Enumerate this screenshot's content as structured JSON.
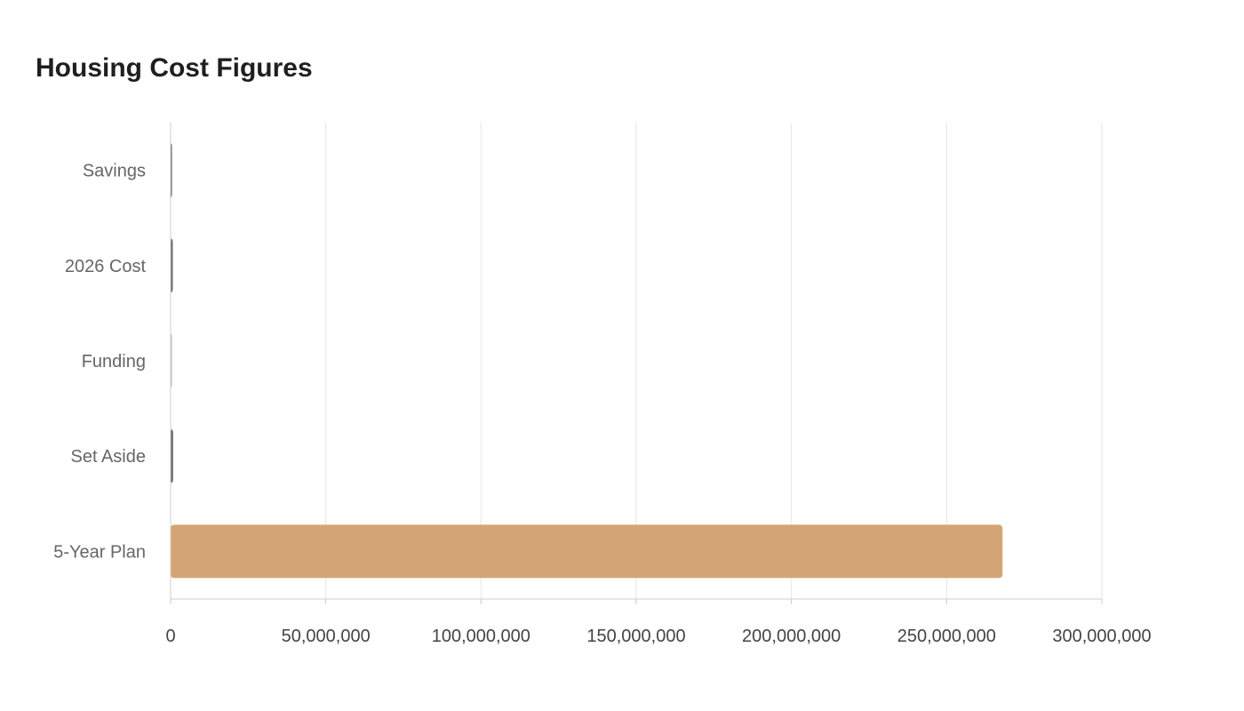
{
  "chart_data": {
    "type": "bar",
    "orientation": "horizontal",
    "title": "Housing Cost Figures",
    "xlabel": "",
    "ylabel": "",
    "categories": [
      "Savings",
      "2026 Cost",
      "Funding",
      "Set Aside",
      "5-Year Plan"
    ],
    "values": [
      350000,
      700000,
      150000,
      800000,
      268000000
    ],
    "xlim": [
      0,
      300000000
    ],
    "xticks": [
      0,
      50000000,
      100000000,
      150000000,
      200000000,
      250000000,
      300000000
    ],
    "xtick_labels": [
      "0",
      "50,000,000",
      "100,000,000",
      "150,000,000",
      "200,000,000",
      "250,000,000",
      "300,000,000"
    ],
    "grid": true,
    "legend": "none",
    "bar_colors": [
      "#555555",
      "#666666",
      "#bbbbbb",
      "#666666",
      "#d4a574"
    ]
  }
}
